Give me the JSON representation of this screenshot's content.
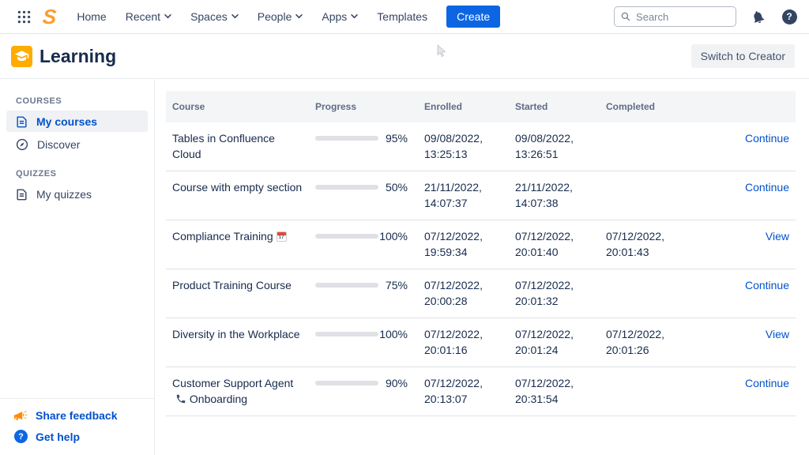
{
  "topnav": {
    "menu": [
      {
        "label": "Home",
        "chevron": false
      },
      {
        "label": "Recent",
        "chevron": true
      },
      {
        "label": "Spaces",
        "chevron": true
      },
      {
        "label": "People",
        "chevron": true
      },
      {
        "label": "Apps",
        "chevron": true
      },
      {
        "label": "Templates",
        "chevron": false
      }
    ],
    "create_label": "Create",
    "search_placeholder": "Search"
  },
  "header": {
    "title": "Learning",
    "switch_button": "Switch to Creator"
  },
  "sidebar": {
    "sections": [
      {
        "heading": "COURSES",
        "items": [
          {
            "label": "My courses",
            "icon": "document-icon",
            "active": true
          },
          {
            "label": "Discover",
            "icon": "compass-icon",
            "active": false
          }
        ]
      },
      {
        "heading": "QUIZZES",
        "items": [
          {
            "label": "My quizzes",
            "icon": "document-icon",
            "active": false
          }
        ]
      }
    ],
    "footer": [
      {
        "label": "Share feedback",
        "icon": "megaphone-icon"
      },
      {
        "label": "Get help",
        "icon": "help-icon"
      }
    ]
  },
  "icons": {
    "calendar_day": "17"
  },
  "table": {
    "columns": [
      "Course",
      "Progress",
      "Enrolled",
      "Started",
      "Completed"
    ],
    "rows": [
      {
        "course": "Tables in Confluence Cloud",
        "progress": 95,
        "progress_label": "95%",
        "enrolled": "09/08/2022,\n13:25:13",
        "started": "09/08/2022,\n13:26:51",
        "completed": "",
        "action": "Continue"
      },
      {
        "course": "Course with empty section",
        "progress": 50,
        "progress_label": "50%",
        "enrolled": "21/11/2022,\n14:07:37",
        "started": "21/11/2022,\n14:07:38",
        "completed": "",
        "action": "Continue"
      },
      {
        "course": "Compliance Training",
        "progress": 100,
        "progress_label": "100%",
        "enrolled": "07/12/2022,\n19:59:34",
        "started": "07/12/2022,\n20:01:40",
        "completed": "07/12/2022,\n20:01:43",
        "action": "View"
      },
      {
        "course": "Product Training Course",
        "progress": 75,
        "progress_label": "75%",
        "enrolled": "07/12/2022,\n20:00:28",
        "started": "07/12/2022,\n20:01:32",
        "completed": "",
        "action": "Continue"
      },
      {
        "course": "Diversity in the Workplace",
        "progress": 100,
        "progress_label": "100%",
        "enrolled": "07/12/2022,\n20:01:16",
        "started": "07/12/2022,\n20:01:24",
        "completed": "07/12/2022,\n20:01:26",
        "action": "View"
      },
      {
        "course": "Customer Support Agent",
        "course2": "Onboarding",
        "progress": 90,
        "progress_label": "90%",
        "enrolled": "07/12/2022,\n20:13:07",
        "started": "07/12/2022,\n20:31:54",
        "completed": "",
        "action": "Continue"
      }
    ]
  },
  "colors": {
    "brand_blue": "#0C66E4",
    "link_blue": "#0052CC",
    "navy_text": "#172B4D",
    "muted_text": "#5E6C84",
    "orange_brand": "#FFAB00",
    "progress_track": "#DFE1E6",
    "header_row_bg": "#F4F5F7"
  }
}
